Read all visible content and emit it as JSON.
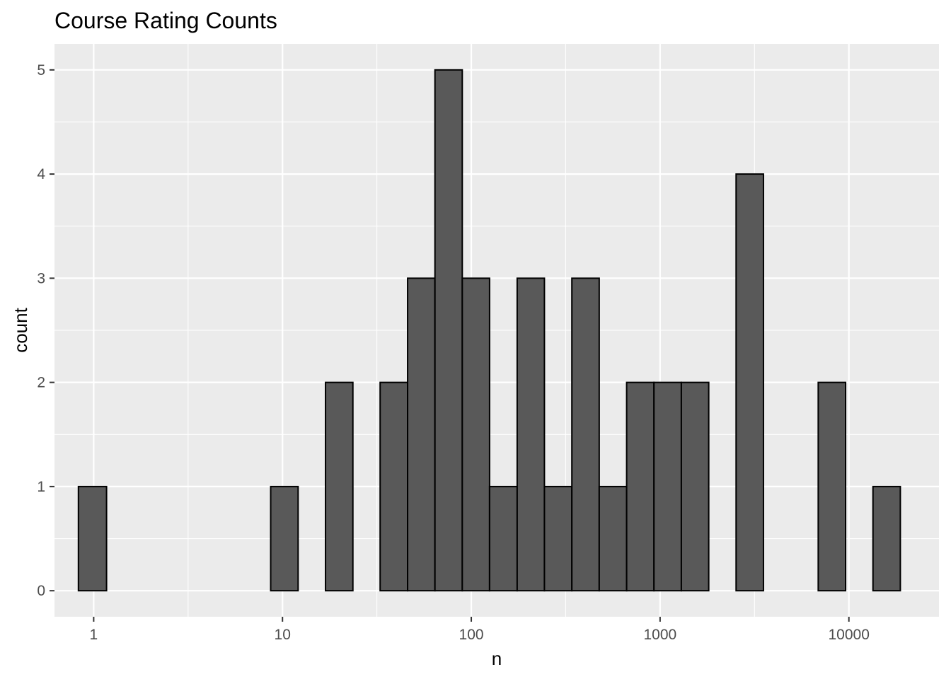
{
  "chart_data": {
    "type": "bar",
    "title": "Course Rating Counts",
    "xlabel": "n",
    "ylabel": "count",
    "x_scale": "log10",
    "xlim": [
      0.62,
      30000
    ],
    "ylim": [
      -0.25,
      5.25
    ],
    "x_ticks": [
      1,
      10,
      100,
      1000,
      10000
    ],
    "x_tick_labels": [
      "1",
      "10",
      "100",
      "1000",
      "10000"
    ],
    "y_ticks": [
      0,
      1,
      2,
      3,
      4,
      5
    ],
    "y_tick_labels": [
      "0",
      "1",
      "2",
      "3",
      "4",
      "5"
    ],
    "grid": true,
    "bar_fill": "#595959",
    "bar_outline": "#000000",
    "panel_background": "#ebebeb",
    "bins": [
      {
        "x_start": 0.83,
        "x_end": 1.17,
        "count": 1
      },
      {
        "x_start": 1.17,
        "x_end": 1.63,
        "count": 0
      },
      {
        "x_start": 1.63,
        "x_end": 2.28,
        "count": 0
      },
      {
        "x_start": 2.28,
        "x_end": 3.18,
        "count": 0
      },
      {
        "x_start": 3.18,
        "x_end": 4.44,
        "count": 0
      },
      {
        "x_start": 4.44,
        "x_end": 6.2,
        "count": 0
      },
      {
        "x_start": 6.2,
        "x_end": 8.66,
        "count": 0
      },
      {
        "x_start": 8.66,
        "x_end": 12.1,
        "count": 1
      },
      {
        "x_start": 12.1,
        "x_end": 16.9,
        "count": 0
      },
      {
        "x_start": 16.9,
        "x_end": 23.6,
        "count": 2
      },
      {
        "x_start": 23.6,
        "x_end": 32.9,
        "count": 0
      },
      {
        "x_start": 32.9,
        "x_end": 46,
        "count": 2
      },
      {
        "x_start": 46,
        "x_end": 64.2,
        "count": 3
      },
      {
        "x_start": 64.2,
        "x_end": 89.6,
        "count": 5
      },
      {
        "x_start": 89.6,
        "x_end": 125,
        "count": 3
      },
      {
        "x_start": 125,
        "x_end": 175,
        "count": 1
      },
      {
        "x_start": 175,
        "x_end": 244,
        "count": 3
      },
      {
        "x_start": 244,
        "x_end": 341,
        "count": 1
      },
      {
        "x_start": 341,
        "x_end": 476,
        "count": 3
      },
      {
        "x_start": 476,
        "x_end": 665,
        "count": 1
      },
      {
        "x_start": 665,
        "x_end": 928,
        "count": 2
      },
      {
        "x_start": 928,
        "x_end": 1296,
        "count": 2
      },
      {
        "x_start": 1296,
        "x_end": 1810,
        "count": 2
      },
      {
        "x_start": 1810,
        "x_end": 2527,
        "count": 0
      },
      {
        "x_start": 2527,
        "x_end": 3528,
        "count": 4
      },
      {
        "x_start": 3528,
        "x_end": 4927,
        "count": 0
      },
      {
        "x_start": 4927,
        "x_end": 6880,
        "count": 0
      },
      {
        "x_start": 6880,
        "x_end": 9606,
        "count": 2
      },
      {
        "x_start": 9606,
        "x_end": 13413,
        "count": 0
      },
      {
        "x_start": 13413,
        "x_end": 18730,
        "count": 1
      }
    ]
  }
}
